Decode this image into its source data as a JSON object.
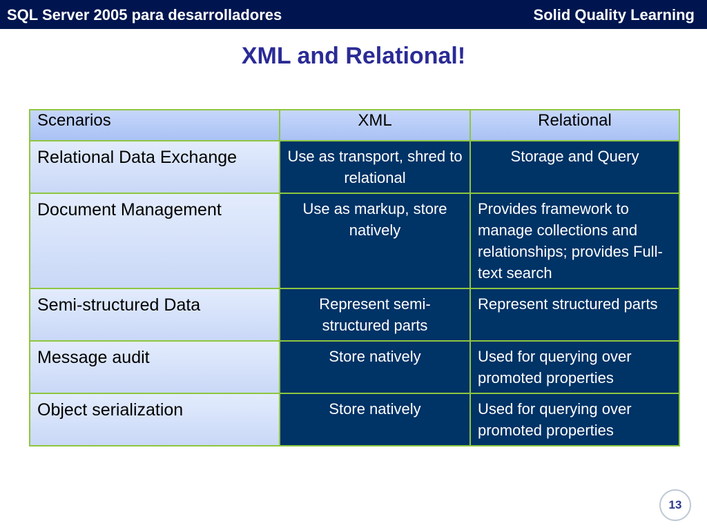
{
  "header": {
    "left_text": "SQL Server 2005 para desarrolladores",
    "right_text": "Solid Quality Learning"
  },
  "slide": {
    "title": "XML and Relational!",
    "page_number": "13"
  },
  "table": {
    "columns": [
      "Scenarios",
      "XML",
      "Relational"
    ],
    "rows": [
      {
        "scenario": "Relational Data Exchange",
        "xml": "Use as transport, shred to relational",
        "relational": "Storage and Query"
      },
      {
        "scenario": "Document Management",
        "xml": "Use as markup, store natively",
        "relational": "Provides framework to manage collections and relationships; provides Full-text search"
      },
      {
        "scenario": "Semi-structured Data",
        "xml": "Represent semi-structured parts",
        "relational": "Represent structured parts"
      },
      {
        "scenario": "Message audit",
        "xml": "Store natively",
        "relational": "Used for querying over promoted properties"
      },
      {
        "scenario": "Object serialization",
        "xml": "Store natively",
        "relational": "Used for querying over promoted properties"
      }
    ]
  },
  "colors": {
    "header_bar": "#00154f",
    "title": "#2b2b96",
    "cell_dark": "#003366",
    "border": "#8dc63f"
  }
}
